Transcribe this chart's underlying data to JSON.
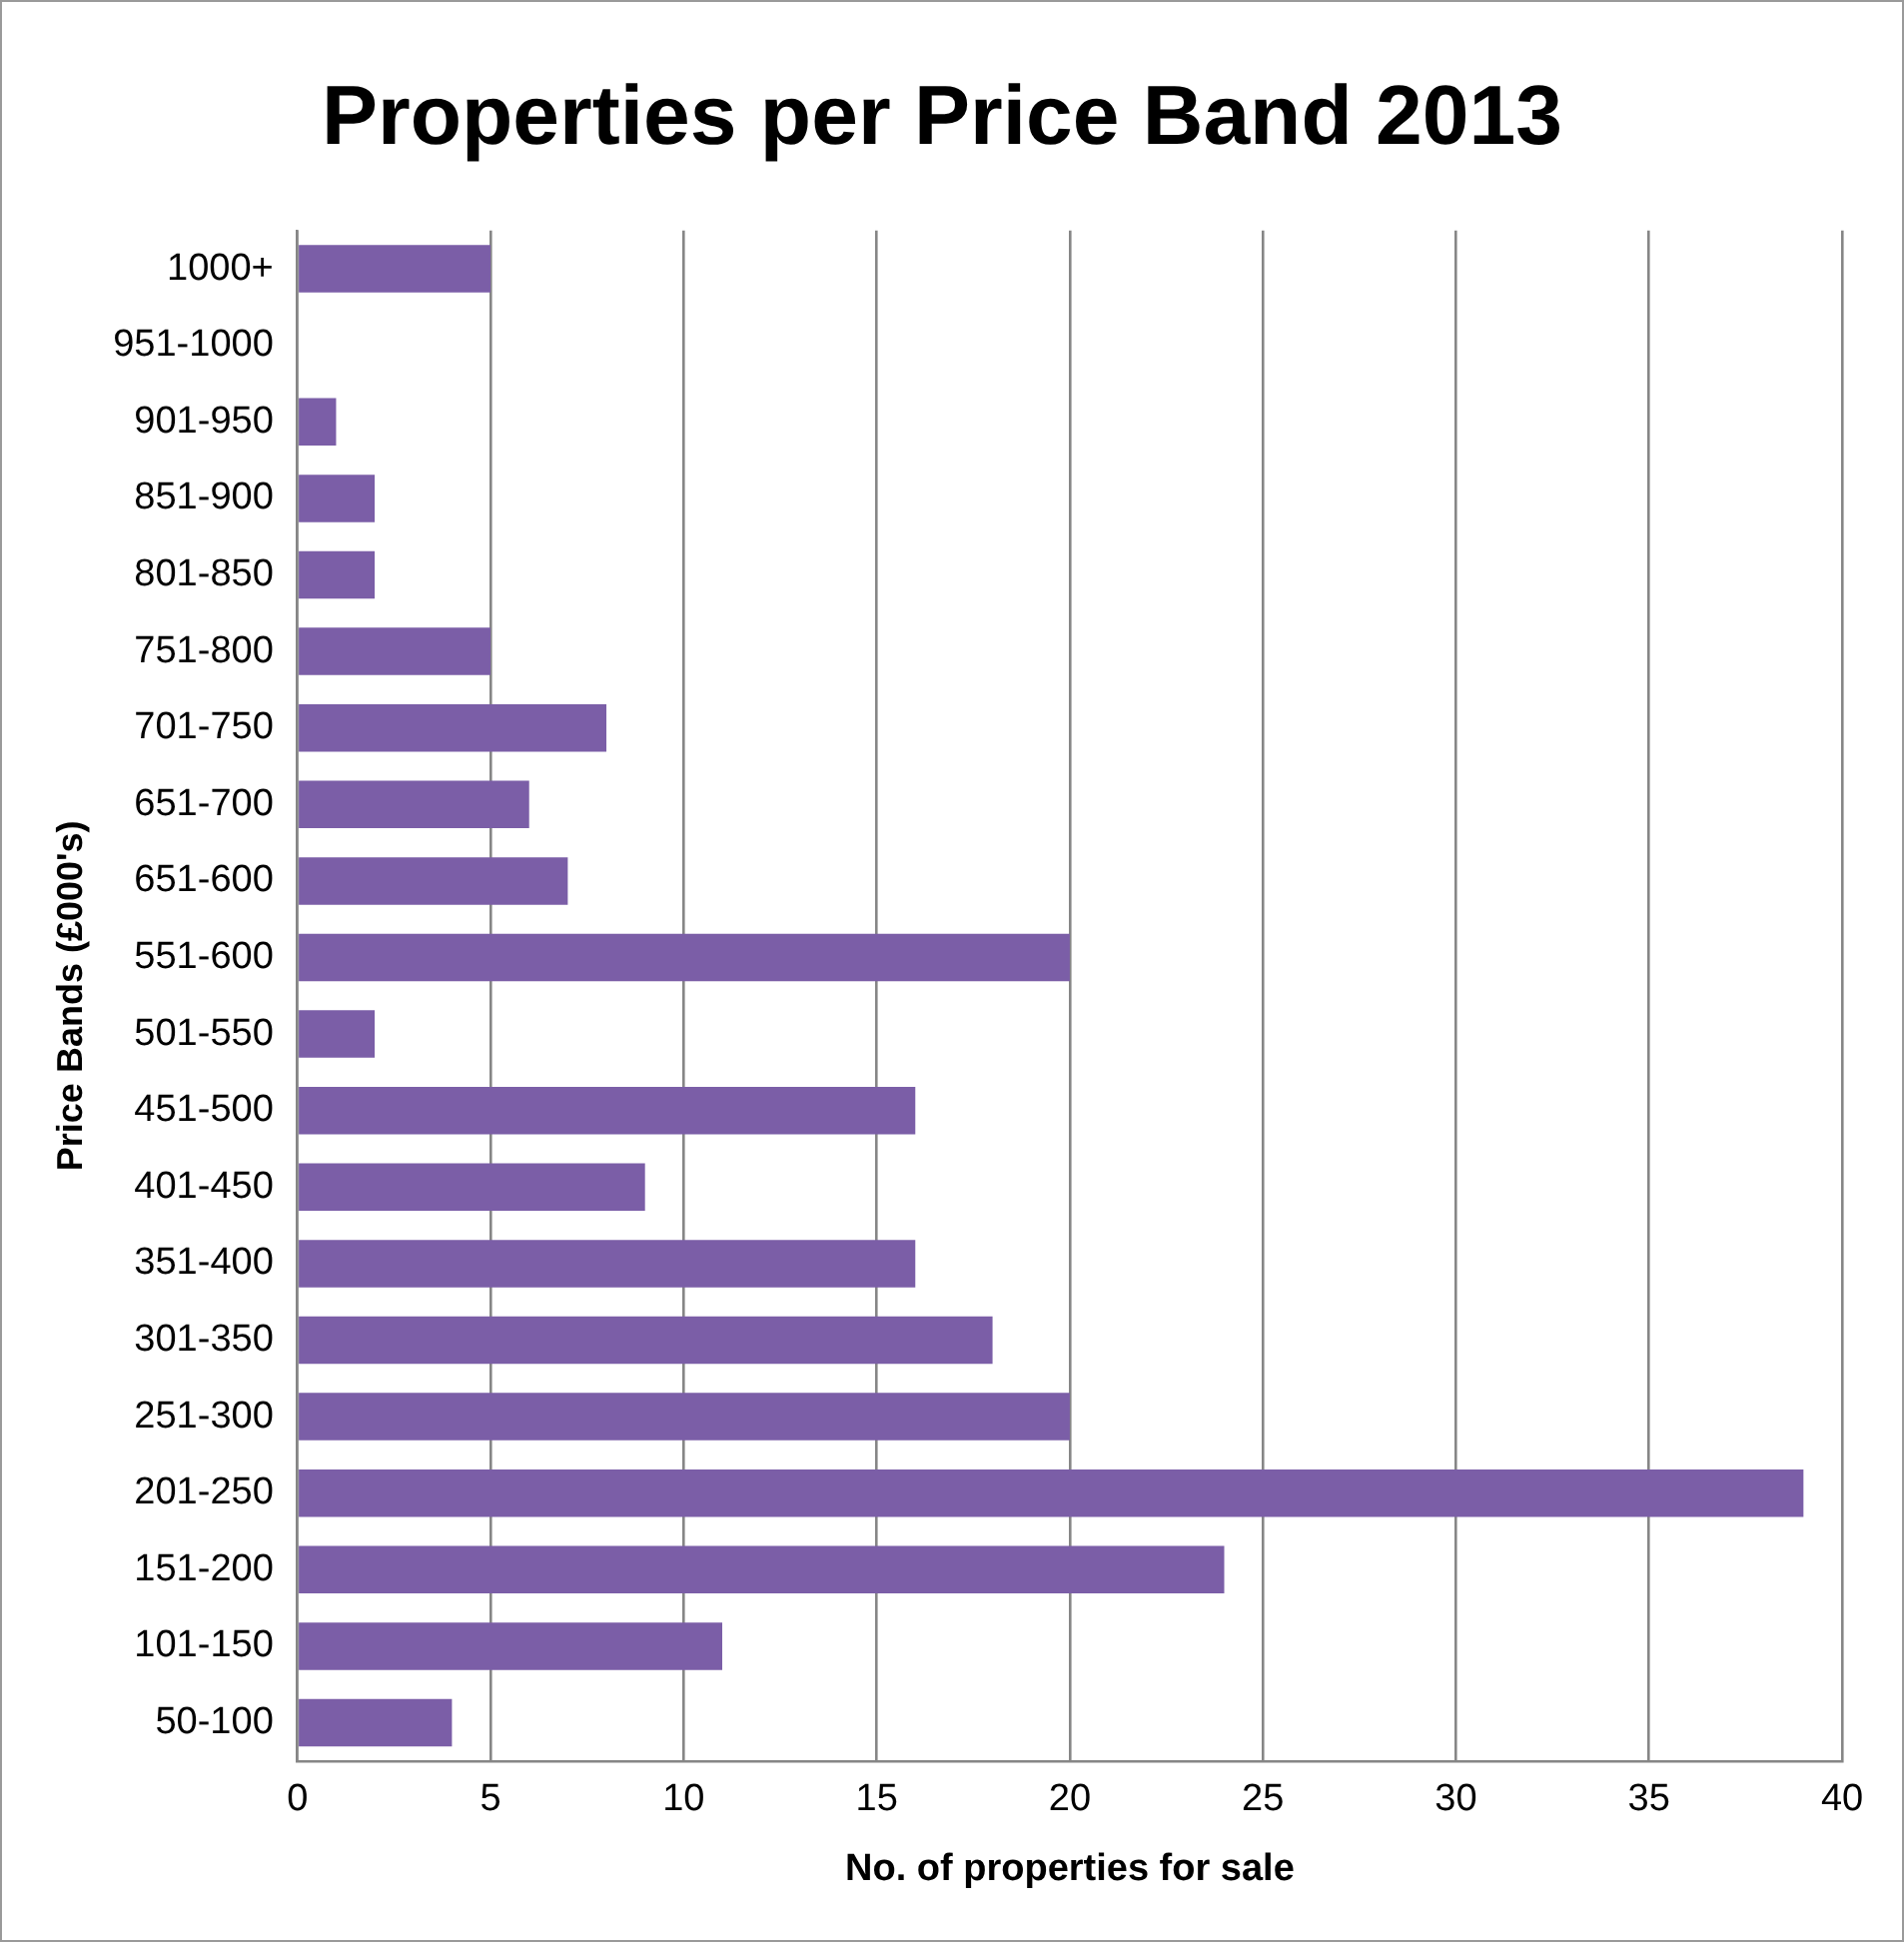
{
  "chart_data": {
    "type": "bar",
    "orientation": "horizontal",
    "title": "Properties per Price Band 2013",
    "xlabel": "No. of properties for sale",
    "ylabel": "Price Bands (£000's)",
    "categories": [
      "1000+",
      "951-1000",
      "901-950",
      "851-900",
      "801-850",
      "751-800",
      "701-750",
      "651-700",
      "651-600",
      "551-600",
      "501-550",
      "451-500",
      "401-450",
      "351-400",
      "301-350",
      "251-300",
      "201-250",
      "151-200",
      "101-150",
      "50-100"
    ],
    "values": [
      5,
      0,
      1,
      2,
      2,
      5,
      8,
      6,
      7,
      20,
      2,
      16,
      9,
      16,
      18,
      20,
      39,
      24,
      11,
      4
    ],
    "color": "#7b5ea7",
    "xlim": [
      0,
      40
    ],
    "xticks": [
      0,
      5,
      10,
      15,
      20,
      25,
      30,
      35,
      40
    ],
    "grid": "x",
    "legend": false
  }
}
